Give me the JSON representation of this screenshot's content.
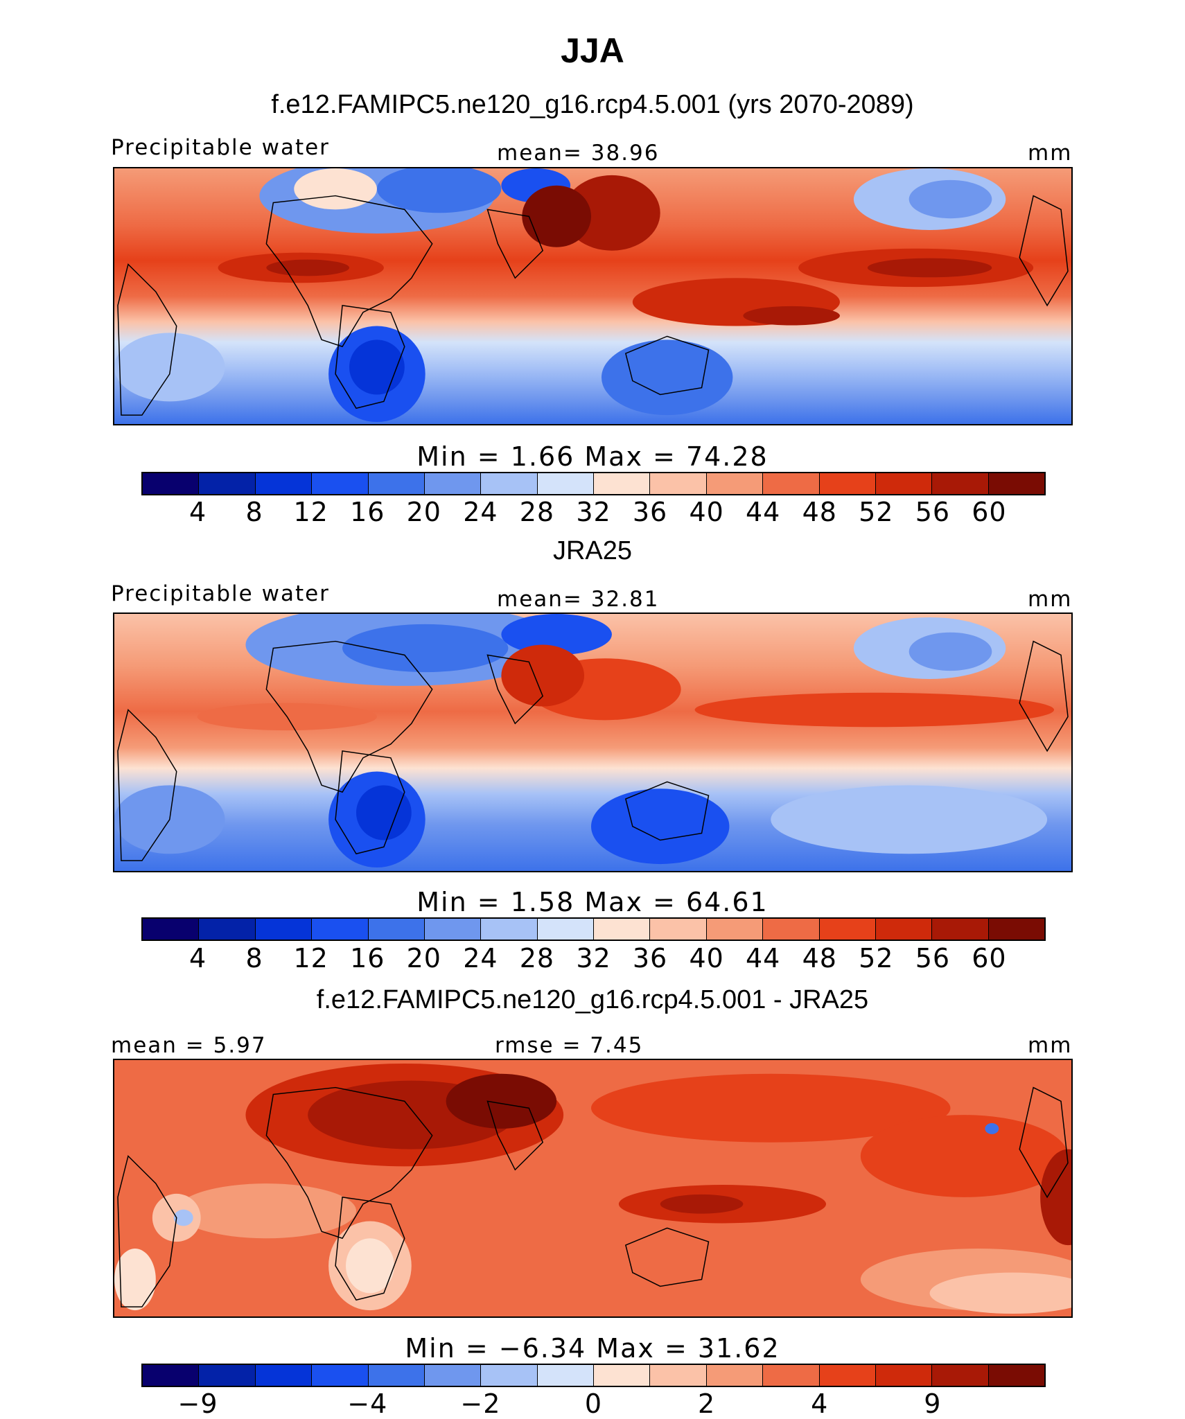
{
  "title": "JJA",
  "colors": [
    "#08006e",
    "#0322a8",
    "#0534d8",
    "#1a50f0",
    "#3d72ea",
    "#6f97ee",
    "#a7c2f6",
    "#d4e3fa",
    "#fde2d2",
    "#fbc2a8",
    "#f59b77",
    "#ee6b45",
    "#e6411a",
    "#cf2a0b",
    "#a81906",
    "#7a0c03"
  ],
  "panels": [
    {
      "title": "f.e12.FAMIPC5.ne120_g16.rcp4.5.001 (yrs 2070-2089)",
      "left_label": "Precipitable water",
      "center_label": "mean=   38.96",
      "right_label": "mm",
      "minmax": "Min  =     1.66  Max  =   74.28",
      "ticks": [
        "4",
        "8",
        "12",
        "16",
        "20",
        "24",
        "28",
        "32",
        "36",
        "40",
        "44",
        "48",
        "52",
        "56",
        "60"
      ]
    },
    {
      "title": "JRA25",
      "left_label": "Precipitable water",
      "center_label": "mean=   32.81",
      "right_label": "mm",
      "minmax": "Min  =     1.58  Max  =   64.61",
      "ticks": [
        "4",
        "8",
        "12",
        "16",
        "20",
        "24",
        "28",
        "32",
        "36",
        "40",
        "44",
        "48",
        "52",
        "56",
        "60"
      ]
    },
    {
      "title": "f.e12.FAMIPC5.ne120_g16.rcp4.5.001 - JRA25",
      "left_label": "mean =    5.97",
      "center_label": "rmse =    7.45",
      "right_label": "mm",
      "minmax": "Min  =   −6.34  Max  =   31.62",
      "ticks": [
        "−9",
        "−4",
        "−2",
        "0",
        "2",
        "4",
        "9"
      ]
    }
  ]
}
